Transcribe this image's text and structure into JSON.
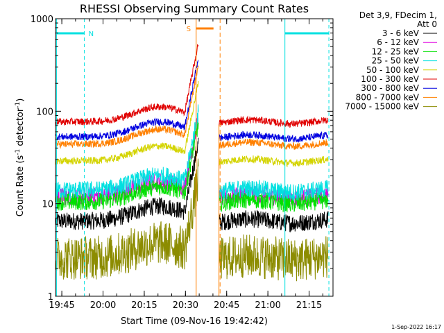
{
  "chart_data": {
    "type": "line",
    "title": "RHESSI Observing Summary Count Rates",
    "xlabel": "Start Time (09-Nov-16 19:42:42)",
    "ylabel_main": "Count Rate (s",
    "ylabel_sup1": "-1",
    "ylabel_mid": " detector",
    "ylabel_sup2": "-1",
    "ylabel_end": ")",
    "yscale": "log",
    "ylim": [
      1,
      1000
    ],
    "xlim_minutes": [
      0,
      101
    ],
    "x_ticks": [
      {
        "label": "19:45",
        "minute": 2.3
      },
      {
        "label": "20:00",
        "minute": 17.3
      },
      {
        "label": "20:15",
        "minute": 32.3
      },
      {
        "label": "20:30",
        "minute": 47.3
      },
      {
        "label": "20:45",
        "minute": 62.3
      },
      {
        "label": "21:00",
        "minute": 77.3
      },
      {
        "label": "21:15",
        "minute": 92.3
      }
    ],
    "y_ticks": [
      {
        "label": "1",
        "value": 1
      },
      {
        "label": "10",
        "value": 10
      },
      {
        "label": "100",
        "value": 100
      },
      {
        "label": "1000",
        "value": 1000
      }
    ],
    "legend_header": [
      "Det 3,9, FDecim 1,",
      "Att 0"
    ],
    "legend_position": "right",
    "series": [
      {
        "name": "3 - 6 keV",
        "color": "#000000",
        "base": 6.5
      },
      {
        "name": "6 - 12 keV",
        "color": "#e000e0",
        "base": 12
      },
      {
        "name": "12 - 25 keV",
        "color": "#00e000",
        "base": 10.5
      },
      {
        "name": "25 - 50 keV",
        "color": "#00e0e0",
        "base": 14
      },
      {
        "name": "50 - 100 keV",
        "color": "#d4d400",
        "base": 29
      },
      {
        "name": "100 - 300 keV",
        "color": "#e00000",
        "base": 77
      },
      {
        "name": "300 - 800 keV",
        "color": "#0000e0",
        "base": 53
      },
      {
        "name": "800 - 7000 keV",
        "color": "#ff8000",
        "base": 44
      },
      {
        "name": "7000 - 15000 keV",
        "color": "#8c8c00",
        "base": 2.6
      }
    ],
    "night_intervals": [
      {
        "label": "N",
        "start": 0.4,
        "end": 10.5,
        "color": "#00e0e0"
      },
      {
        "label": "",
        "start": 83.5,
        "end": 99.5,
        "color": "#00e0e0"
      }
    ],
    "saa_intervals": [
      {
        "label": "S",
        "start": 51.2,
        "end": 57.5,
        "color": "#ff8000"
      }
    ],
    "data_gap": [
      52.0,
      59.5
    ],
    "footer_date": "1-Sep-2022 16:17"
  }
}
